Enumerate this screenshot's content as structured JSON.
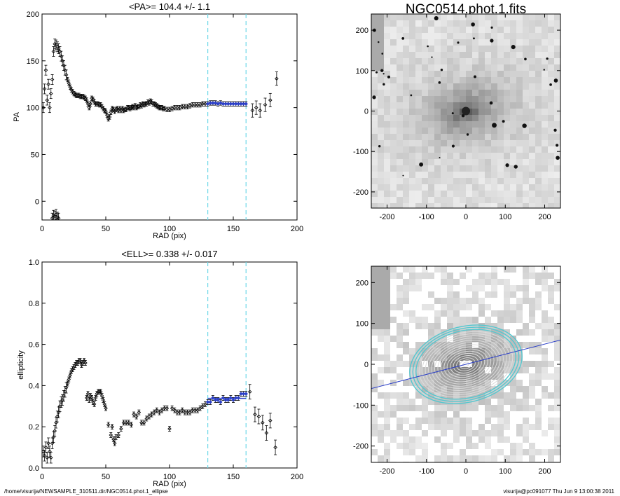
{
  "footer": {
    "path": "/home/visurija/NEWSAMPLE_310511.dir/NGC0514.phot.1_ellipse",
    "user_time": "visurija@pc091077  Thu Jun  9 13:00:38 2011"
  },
  "colors": {
    "fit_line": "#2b3fc8",
    "window_lines": "#6fd8e8",
    "ellipses": "#56c7cf"
  },
  "chart_data": [
    {
      "type": "scatter",
      "title": "<PA>= 104.4 +/-   1.1",
      "xlabel": "RAD (pix)",
      "ylabel": "PA",
      "xlim": [
        0,
        200
      ],
      "ylim": [
        -20,
        200
      ],
      "xticks": [
        0,
        50,
        100,
        150,
        200
      ],
      "yticks": [
        0,
        50,
        100,
        150,
        200
      ],
      "vlines": [
        130,
        160
      ],
      "fit": {
        "x": [
          130,
          160
        ],
        "value": 104.4
      },
      "error_bars": true,
      "points": [
        [
          1,
          100
        ],
        [
          2,
          120
        ],
        [
          3,
          140
        ],
        [
          4,
          108
        ],
        [
          5,
          125
        ],
        [
          6,
          100
        ],
        [
          7,
          115
        ],
        [
          8,
          130
        ],
        [
          9,
          160
        ],
        [
          10,
          168
        ],
        [
          11,
          167
        ],
        [
          12,
          165
        ],
        [
          13,
          163
        ],
        [
          14,
          160
        ],
        [
          15,
          155
        ],
        [
          16,
          150
        ],
        [
          17,
          145
        ],
        [
          18,
          140
        ],
        [
          19,
          135
        ],
        [
          20,
          130
        ],
        [
          21,
          126
        ],
        [
          22,
          122
        ],
        [
          23,
          119
        ],
        [
          24,
          117
        ],
        [
          25,
          115
        ],
        [
          26,
          114
        ],
        [
          27,
          113
        ],
        [
          28,
          113
        ],
        [
          29,
          113
        ],
        [
          30,
          112
        ],
        [
          31,
          112
        ],
        [
          32,
          112
        ],
        [
          33,
          111
        ],
        [
          34,
          110
        ],
        [
          35,
          108
        ],
        [
          36,
          104
        ],
        [
          37,
          100
        ],
        [
          38,
          104
        ],
        [
          39,
          110
        ],
        [
          40,
          109
        ],
        [
          41,
          106
        ],
        [
          42,
          104
        ],
        [
          43,
          104
        ],
        [
          44,
          104
        ],
        [
          45,
          103
        ],
        [
          46,
          103
        ],
        [
          47,
          101
        ],
        [
          48,
          99
        ],
        [
          49,
          97
        ],
        [
          50,
          96
        ],
        [
          51,
          92
        ],
        [
          52,
          88
        ],
        [
          53,
          90
        ],
        [
          54,
          95
        ],
        [
          55,
          99
        ],
        [
          56,
          98
        ],
        [
          57,
          96
        ],
        [
          58,
          98
        ],
        [
          59,
          99
        ],
        [
          60,
          97
        ],
        [
          61,
          99
        ],
        [
          62,
          97
        ],
        [
          63,
          99
        ],
        [
          64,
          97
        ],
        [
          65,
          98
        ],
        [
          66,
          98
        ],
        [
          67,
          100
        ],
        [
          68,
          100
        ],
        [
          69,
          99
        ],
        [
          70,
          100
        ],
        [
          71,
          101
        ],
        [
          72,
          100
        ],
        [
          73,
          102
        ],
        [
          74,
          100
        ],
        [
          75,
          101
        ],
        [
          76,
          101
        ],
        [
          77,
          103
        ],
        [
          78,
          102
        ],
        [
          79,
          104
        ],
        [
          80,
          103
        ],
        [
          81,
          104
        ],
        [
          82,
          104
        ],
        [
          83,
          106
        ],
        [
          84,
          105
        ],
        [
          85,
          107
        ],
        [
          86,
          106
        ],
        [
          87,
          104
        ],
        [
          88,
          104
        ],
        [
          89,
          103
        ],
        [
          90,
          102
        ],
        [
          91,
          101
        ],
        [
          92,
          100
        ],
        [
          93,
          100
        ],
        [
          94,
          100
        ],
        [
          95,
          99
        ],
        [
          96,
          99
        ],
        [
          98,
          98
        ],
        [
          100,
          98
        ],
        [
          102,
          99
        ],
        [
          104,
          100
        ],
        [
          106,
          100
        ],
        [
          108,
          100
        ],
        [
          110,
          101
        ],
        [
          112,
          101
        ],
        [
          114,
          101
        ],
        [
          116,
          102
        ],
        [
          118,
          103
        ],
        [
          120,
          103
        ],
        [
          122,
          103
        ],
        [
          124,
          103
        ],
        [
          126,
          104
        ],
        [
          128,
          104
        ],
        [
          130,
          104
        ],
        [
          132,
          105
        ],
        [
          134,
          105
        ],
        [
          136,
          105
        ],
        [
          138,
          104
        ],
        [
          140,
          105
        ],
        [
          142,
          104
        ],
        [
          144,
          104
        ],
        [
          146,
          104
        ],
        [
          148,
          104
        ],
        [
          150,
          104
        ],
        [
          152,
          104
        ],
        [
          154,
          104
        ],
        [
          156,
          104
        ],
        [
          158,
          104
        ],
        [
          160,
          104
        ],
        [
          165,
          97
        ],
        [
          168,
          100
        ],
        [
          171,
          97
        ],
        [
          175,
          103
        ],
        [
          179,
          108
        ],
        [
          184,
          131
        ],
        [
          9,
          -15
        ],
        [
          10,
          -16
        ],
        [
          11,
          -14
        ],
        [
          12,
          -17
        ],
        [
          13,
          -18
        ],
        [
          8,
          -18
        ]
      ]
    },
    {
      "type": "scatter",
      "title": "<ELL>= 0.338 +/-  0.017",
      "xlabel": "RAD (pix)",
      "ylabel": "ellipticity",
      "xlim": [
        0,
        200
      ],
      "ylim": [
        0.0,
        1.0
      ],
      "xticks": [
        0,
        50,
        100,
        150,
        200
      ],
      "yticks": [
        0.0,
        0.2,
        0.4,
        0.6,
        0.8,
        1.0
      ],
      "vlines": [
        130,
        160
      ],
      "fit": {
        "x": [
          130,
          160
        ],
        "value": 0.338
      },
      "error_bars": true,
      "points": [
        [
          1,
          0.08
        ],
        [
          2,
          0.06
        ],
        [
          3,
          0.1
        ],
        [
          4,
          0.05
        ],
        [
          5,
          0.12
        ],
        [
          6,
          0.08
        ],
        [
          7,
          0.05
        ],
        [
          8,
          0.12
        ],
        [
          9,
          0.15
        ],
        [
          10,
          0.18
        ],
        [
          11,
          0.22
        ],
        [
          12,
          0.25
        ],
        [
          13,
          0.27
        ],
        [
          14,
          0.3
        ],
        [
          15,
          0.32
        ],
        [
          16,
          0.33
        ],
        [
          17,
          0.35
        ],
        [
          18,
          0.37
        ],
        [
          19,
          0.39
        ],
        [
          20,
          0.41
        ],
        [
          21,
          0.43
        ],
        [
          22,
          0.45
        ],
        [
          23,
          0.47
        ],
        [
          24,
          0.48
        ],
        [
          25,
          0.49
        ],
        [
          26,
          0.5
        ],
        [
          27,
          0.51
        ],
        [
          28,
          0.51
        ],
        [
          29,
          0.52
        ],
        [
          30,
          0.52
        ],
        [
          31,
          0.5
        ],
        [
          32,
          0.51
        ],
        [
          33,
          0.52
        ],
        [
          34,
          0.51
        ],
        [
          35,
          0.34
        ],
        [
          36,
          0.36
        ],
        [
          37,
          0.33
        ],
        [
          38,
          0.35
        ],
        [
          39,
          0.34
        ],
        [
          40,
          0.32
        ],
        [
          41,
          0.31
        ],
        [
          42,
          0.34
        ],
        [
          43,
          0.36
        ],
        [
          44,
          0.37
        ],
        [
          45,
          0.37
        ],
        [
          46,
          0.37
        ],
        [
          47,
          0.35
        ],
        [
          48,
          0.33
        ],
        [
          49,
          0.31
        ],
        [
          50,
          0.29
        ],
        [
          52,
          0.21
        ],
        [
          54,
          0.16
        ],
        [
          55,
          0.2
        ],
        [
          56,
          0.14
        ],
        [
          57,
          0.12
        ],
        [
          58,
          0.15
        ],
        [
          60,
          0.16
        ],
        [
          62,
          0.19
        ],
        [
          64,
          0.22
        ],
        [
          66,
          0.22
        ],
        [
          68,
          0.22
        ],
        [
          70,
          0.21
        ],
        [
          72,
          0.26
        ],
        [
          74,
          0.25
        ],
        [
          76,
          0.27
        ],
        [
          78,
          0.22
        ],
        [
          80,
          0.22
        ],
        [
          82,
          0.24
        ],
        [
          84,
          0.25
        ],
        [
          86,
          0.26
        ],
        [
          88,
          0.27
        ],
        [
          90,
          0.28
        ],
        [
          92,
          0.27
        ],
        [
          94,
          0.28
        ],
        [
          96,
          0.29
        ],
        [
          98,
          0.29
        ],
        [
          100,
          0.19
        ],
        [
          102,
          0.29
        ],
        [
          104,
          0.28
        ],
        [
          106,
          0.27
        ],
        [
          108,
          0.27
        ],
        [
          110,
          0.28
        ],
        [
          112,
          0.27
        ],
        [
          114,
          0.27
        ],
        [
          116,
          0.27
        ],
        [
          118,
          0.28
        ],
        [
          120,
          0.28
        ],
        [
          122,
          0.28
        ],
        [
          124,
          0.29
        ],
        [
          126,
          0.3
        ],
        [
          128,
          0.31
        ],
        [
          130,
          0.32
        ],
        [
          132,
          0.32
        ],
        [
          134,
          0.34
        ],
        [
          136,
          0.33
        ],
        [
          138,
          0.33
        ],
        [
          140,
          0.32
        ],
        [
          142,
          0.34
        ],
        [
          144,
          0.33
        ],
        [
          146,
          0.33
        ],
        [
          148,
          0.34
        ],
        [
          150,
          0.33
        ],
        [
          152,
          0.34
        ],
        [
          154,
          0.34
        ],
        [
          156,
          0.36
        ],
        [
          158,
          0.36
        ],
        [
          160,
          0.36
        ],
        [
          163,
          0.37
        ],
        [
          167,
          0.26
        ],
        [
          170,
          0.25
        ],
        [
          173,
          0.22
        ],
        [
          176,
          0.17
        ],
        [
          179,
          0.23
        ],
        [
          183,
          0.1
        ]
      ]
    },
    {
      "type": "image",
      "title": "NGC0514.phot.1.fits",
      "xlim": [
        -240,
        240
      ],
      "ylim": [
        -240,
        240
      ],
      "xticks": [
        -200,
        -100,
        0,
        100,
        200
      ],
      "yticks": [
        -200,
        -100,
        0,
        100,
        200
      ]
    },
    {
      "type": "image",
      "title": "",
      "xlim": [
        -240,
        240
      ],
      "ylim": [
        -240,
        240
      ],
      "xticks": [
        -200,
        -100,
        0,
        100,
        200
      ],
      "yticks": [
        -200,
        -100,
        0,
        100,
        200
      ],
      "ellipses": {
        "pa_deg": 104.4,
        "ell": 0.338,
        "outer_radius": 145,
        "count": 18
      }
    }
  ]
}
